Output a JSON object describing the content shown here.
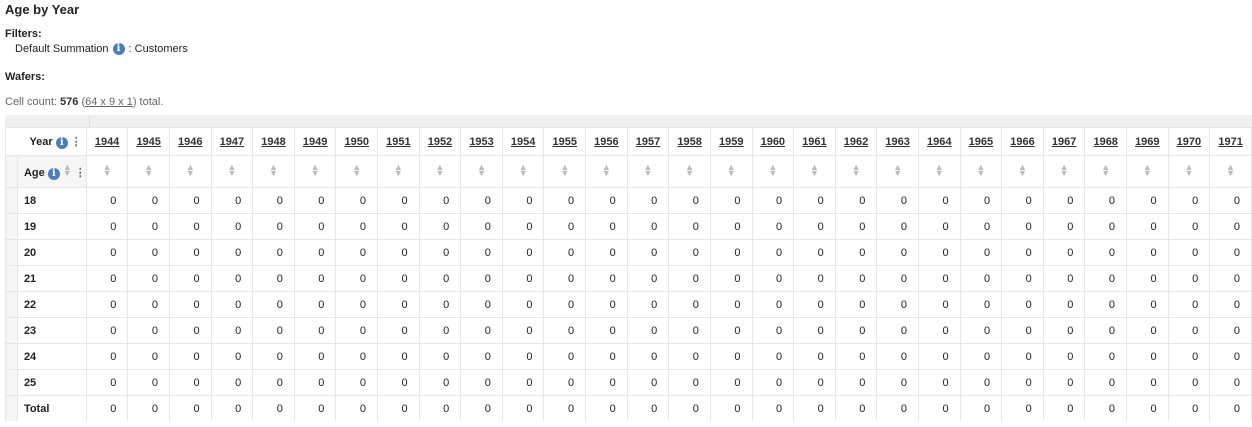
{
  "title": "Age by Year",
  "filters_label": "Filters:",
  "filter": {
    "name": "Default Summation",
    "value": ": Customers"
  },
  "wafers_label": "Wafers:",
  "cell_count": {
    "prefix": "Cell count: ",
    "count": "576",
    "open": " (",
    "dims": "64 x 9 x 1",
    "suffix": ") total."
  },
  "col_dim": "Year",
  "row_dim": "Age",
  "years": [
    "1944",
    "1945",
    "1946",
    "1947",
    "1948",
    "1949",
    "1950",
    "1951",
    "1952",
    "1953",
    "1954",
    "1955",
    "1956",
    "1957",
    "1958",
    "1959",
    "1960",
    "1961",
    "1962",
    "1963",
    "1964",
    "1965",
    "1966",
    "1967",
    "1968",
    "1969",
    "1970",
    "1971"
  ],
  "rows": [
    {
      "label": "18",
      "values": [
        0,
        0,
        0,
        0,
        0,
        0,
        0,
        0,
        0,
        0,
        0,
        0,
        0,
        0,
        0,
        0,
        0,
        0,
        0,
        0,
        0,
        0,
        0,
        0,
        0,
        0,
        0,
        0
      ]
    },
    {
      "label": "19",
      "values": [
        0,
        0,
        0,
        0,
        0,
        0,
        0,
        0,
        0,
        0,
        0,
        0,
        0,
        0,
        0,
        0,
        0,
        0,
        0,
        0,
        0,
        0,
        0,
        0,
        0,
        0,
        0,
        0
      ]
    },
    {
      "label": "20",
      "values": [
        0,
        0,
        0,
        0,
        0,
        0,
        0,
        0,
        0,
        0,
        0,
        0,
        0,
        0,
        0,
        0,
        0,
        0,
        0,
        0,
        0,
        0,
        0,
        0,
        0,
        0,
        0,
        0
      ]
    },
    {
      "label": "21",
      "values": [
        0,
        0,
        0,
        0,
        0,
        0,
        0,
        0,
        0,
        0,
        0,
        0,
        0,
        0,
        0,
        0,
        0,
        0,
        0,
        0,
        0,
        0,
        0,
        0,
        0,
        0,
        0,
        0
      ]
    },
    {
      "label": "22",
      "values": [
        0,
        0,
        0,
        0,
        0,
        0,
        0,
        0,
        0,
        0,
        0,
        0,
        0,
        0,
        0,
        0,
        0,
        0,
        0,
        0,
        0,
        0,
        0,
        0,
        0,
        0,
        0,
        0
      ]
    },
    {
      "label": "23",
      "values": [
        0,
        0,
        0,
        0,
        0,
        0,
        0,
        0,
        0,
        0,
        0,
        0,
        0,
        0,
        0,
        0,
        0,
        0,
        0,
        0,
        0,
        0,
        0,
        0,
        0,
        0,
        0,
        0
      ]
    },
    {
      "label": "24",
      "values": [
        0,
        0,
        0,
        0,
        0,
        0,
        0,
        0,
        0,
        0,
        0,
        0,
        0,
        0,
        0,
        0,
        0,
        0,
        0,
        0,
        0,
        0,
        0,
        0,
        0,
        0,
        0,
        0
      ]
    },
    {
      "label": "25",
      "values": [
        0,
        0,
        0,
        0,
        0,
        0,
        0,
        0,
        0,
        0,
        0,
        0,
        0,
        0,
        0,
        0,
        0,
        0,
        0,
        0,
        0,
        0,
        0,
        0,
        0,
        0,
        0,
        0
      ]
    },
    {
      "label": "Total",
      "values": [
        0,
        0,
        0,
        0,
        0,
        0,
        0,
        0,
        0,
        0,
        0,
        0,
        0,
        0,
        0,
        0,
        0,
        0,
        0,
        0,
        0,
        0,
        0,
        0,
        0,
        0,
        0,
        0
      ]
    }
  ]
}
